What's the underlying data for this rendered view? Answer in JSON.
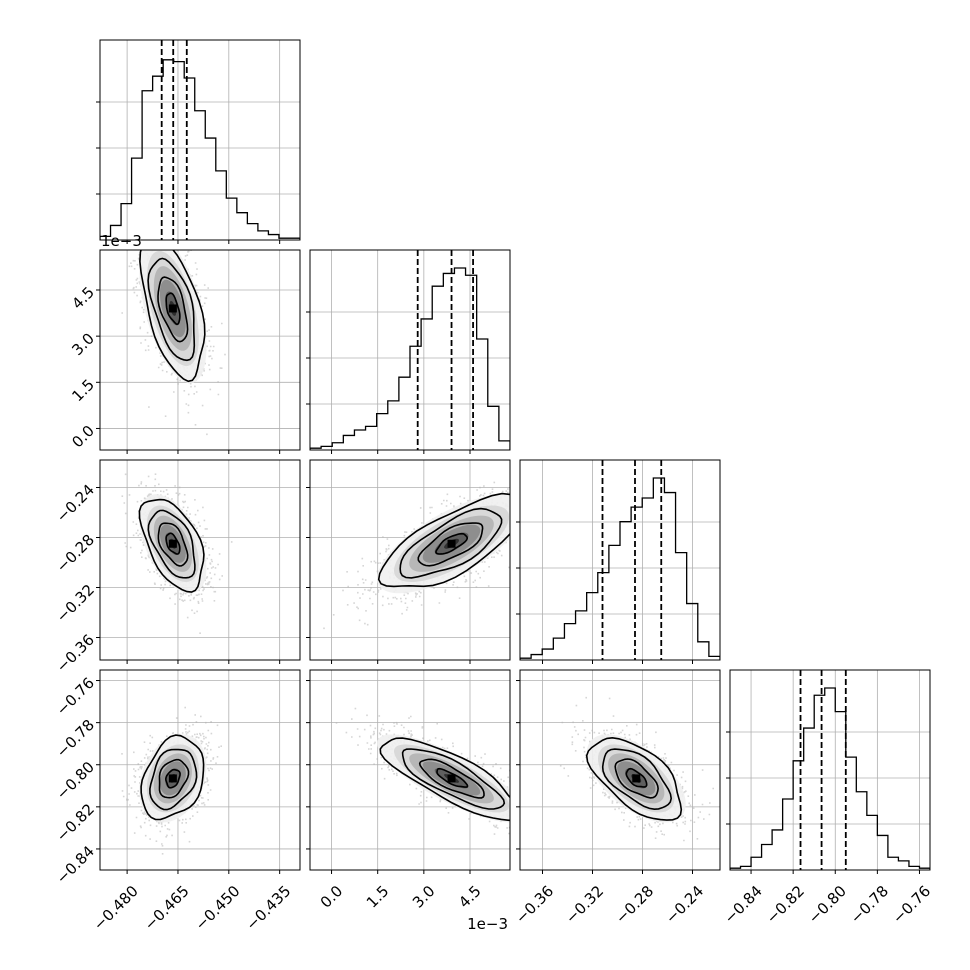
{
  "chart_data": {
    "type": "corner",
    "title": "",
    "grid": true,
    "scale_note": "1e−3",
    "parameters": [
      {
        "xlim": [
          -0.488,
          -0.429
        ],
        "ylim": null,
        "ticks": [
          -0.48,
          -0.465,
          -0.45,
          -0.435
        ],
        "tick_labels": [
          "−0.480",
          "−0.465",
          "−0.450",
          "−0.435"
        ]
      },
      {
        "xlim": [
          -0.0007,
          0.0058
        ],
        "ylim": [
          -0.0007,
          0.0058
        ],
        "ticks": [
          0.0,
          0.0015,
          0.003,
          0.0045
        ],
        "tick_labels": [
          "0.0",
          "1.5",
          "3.0",
          "4.5"
        ]
      },
      {
        "xlim": [
          -0.378,
          -0.218
        ],
        "ylim": [
          -0.378,
          -0.218
        ],
        "ticks": [
          -0.36,
          -0.32,
          -0.28,
          -0.24
        ],
        "tick_labels": [
          "−0.36",
          "−0.32",
          "−0.28",
          "−0.24"
        ]
      },
      {
        "xlim": [
          -0.85,
          -0.755
        ],
        "ylim": [
          -0.85,
          -0.755
        ],
        "ticks": [
          -0.84,
          -0.82,
          -0.8,
          -0.78,
          -0.76
        ],
        "tick_labels": [
          "−0.84",
          "−0.82",
          "−0.80",
          "−0.78",
          "−0.76"
        ]
      }
    ],
    "histograms": [
      {
        "counts": [
          0.02,
          0.08,
          0.2,
          0.45,
          0.82,
          0.9,
          0.99,
          0.98,
          0.89,
          0.71,
          0.56,
          0.38,
          0.23,
          0.15,
          0.09,
          0.05,
          0.03,
          0.01,
          0.01
        ],
        "quantiles": [
          -0.4698,
          -0.4664,
          -0.4624
        ]
      },
      {
        "counts": [
          0.01,
          0.02,
          0.04,
          0.08,
          0.11,
          0.13,
          0.2,
          0.27,
          0.4,
          0.57,
          0.72,
          0.9,
          0.97,
          1.0,
          0.96,
          0.61,
          0.24,
          0.05
        ],
        "quantiles": [
          0.0028,
          0.0039,
          0.0046
        ]
      },
      {
        "counts": [
          0.01,
          0.03,
          0.06,
          0.12,
          0.2,
          0.27,
          0.37,
          0.48,
          0.63,
          0.76,
          0.84,
          0.89,
          1.0,
          0.92,
          0.59,
          0.31,
          0.1,
          0.02
        ],
        "quantiles": [
          -0.312,
          -0.286,
          -0.265
        ]
      },
      {
        "counts": [
          0.01,
          0.02,
          0.07,
          0.14,
          0.22,
          0.39,
          0.6,
          0.78,
          0.96,
          1.0,
          0.87,
          0.62,
          0.43,
          0.3,
          0.19,
          0.07,
          0.05,
          0.02,
          0.01
        ],
        "quantiles": [
          -0.8165,
          -0.8065,
          -0.795
        ]
      }
    ],
    "pairs": [
      {
        "x": 0,
        "y": 1,
        "mean": [
          -0.4665,
          0.0039
        ],
        "sd": [
          0.0045,
          0.0011
        ],
        "rho": -0.52
      },
      {
        "x": 0,
        "y": 2,
        "mean": [
          -0.4665,
          -0.285
        ],
        "sd": [
          0.0045,
          0.018
        ],
        "rho": -0.5
      },
      {
        "x": 1,
        "y": 2,
        "mean": [
          0.0039,
          -0.285
        ],
        "sd": [
          0.0011,
          0.018
        ],
        "rho": 0.7
      },
      {
        "x": 0,
        "y": 3,
        "mean": [
          -0.4665,
          -0.8065
        ],
        "sd": [
          0.0045,
          0.0095
        ],
        "rho": 0.28
      },
      {
        "x": 1,
        "y": 3,
        "mean": [
          0.0039,
          -0.8065
        ],
        "sd": [
          0.0011,
          0.0095
        ],
        "rho": -0.8
      },
      {
        "x": 2,
        "y": 3,
        "mean": [
          -0.285,
          -0.8065
        ],
        "sd": [
          0.018,
          0.0095
        ],
        "rho": -0.58
      }
    ]
  }
}
